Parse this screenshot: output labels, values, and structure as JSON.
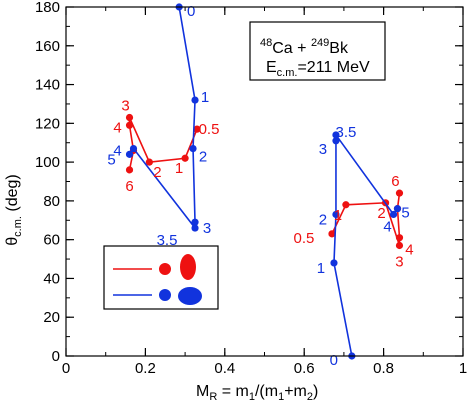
{
  "chart_data": {
    "type": "line",
    "xlabel_main": "M",
    "xlabel_main_sub": "R",
    "xlabel_rest": " = m",
    "xlabel_s1": "1",
    "xlabel_mid": "/(m",
    "xlabel_s2": "1",
    "xlabel_plus": "+m",
    "xlabel_s3": "2",
    "xlabel_end": ")",
    "ylabel_theta": "θ",
    "ylabel_sub": "c.m.",
    "ylabel_unit": " (deg)",
    "xlim": [
      0,
      1
    ],
    "ylim": [
      0,
      180
    ],
    "x_ticks": [
      0,
      0.2,
      0.4,
      0.6,
      0.8,
      1
    ],
    "x_tick_labels": [
      "0",
      "0.2",
      "0.4",
      "0.6",
      "0.8",
      "1"
    ],
    "y_ticks": [
      0,
      20,
      40,
      60,
      80,
      100,
      120,
      140,
      160,
      180
    ],
    "y_tick_labels": [
      "0",
      "20",
      "40",
      "60",
      "80",
      "100",
      "120",
      "140",
      "160",
      "180"
    ],
    "annotation": {
      "mass1": "48",
      "el1": "Ca + ",
      "mass2": "249",
      "el2": "Bk",
      "energy_main": "E",
      "energy_sub": "c.m.",
      "energy_val": "=211 MeV"
    },
    "colors": {
      "red": "#ee1111",
      "blue": "#1133dd"
    },
    "series": [
      {
        "color": "red",
        "points": [
          {
            "x": 0.33,
            "y": 117,
            "label": "0.5"
          },
          {
            "x": 0.3,
            "y": 102,
            "label": "1"
          },
          {
            "x": 0.21,
            "y": 100,
            "label": "2"
          },
          {
            "x": 0.16,
            "y": 123,
            "label": "3"
          },
          {
            "x": 0.16,
            "y": 119,
            "label": "4"
          },
          {
            "x": 0.17,
            "y": 106,
            "label": ""
          },
          {
            "x": 0.16,
            "y": 96,
            "label": "6"
          }
        ]
      },
      {
        "color": "blue",
        "points": [
          {
            "x": 0.285,
            "y": 180,
            "label": "0"
          },
          {
            "x": 0.325,
            "y": 132,
            "label": "1"
          },
          {
            "x": 0.32,
            "y": 107,
            "label": "2"
          },
          {
            "x": 0.325,
            "y": 69,
            "label": "3"
          },
          {
            "x": 0.325,
            "y": 66,
            "label": "3.5"
          },
          {
            "x": 0.17,
            "y": 107,
            "label": "4"
          },
          {
            "x": 0.16,
            "y": 104,
            "label": "5"
          }
        ]
      },
      {
        "color": "red",
        "points": [
          {
            "x": 0.67,
            "y": 63,
            "label": "0.5"
          },
          {
            "x": 0.705,
            "y": 78,
            "label": "1"
          },
          {
            "x": 0.805,
            "y": 79,
            "label": "2"
          },
          {
            "x": 0.84,
            "y": 57,
            "label": "3"
          },
          {
            "x": 0.84,
            "y": 61,
            "label": "4"
          },
          {
            "x": 0.835,
            "y": 76,
            "label": ""
          },
          {
            "x": 0.84,
            "y": 84,
            "label": "6"
          }
        ]
      },
      {
        "color": "blue",
        "points": [
          {
            "x": 0.72,
            "y": 0,
            "label": "0"
          },
          {
            "x": 0.675,
            "y": 48,
            "label": "1"
          },
          {
            "x": 0.68,
            "y": 73,
            "label": "2"
          },
          {
            "x": 0.68,
            "y": 111,
            "label": "3"
          },
          {
            "x": 0.68,
            "y": 114,
            "label": "3.5"
          },
          {
            "x": 0.825,
            "y": 73,
            "label": "4"
          },
          {
            "x": 0.835,
            "y": 76,
            "label": "5"
          }
        ]
      }
    ],
    "legend": {
      "entries": [
        {
          "color": "red"
        },
        {
          "color": "blue"
        }
      ]
    }
  }
}
